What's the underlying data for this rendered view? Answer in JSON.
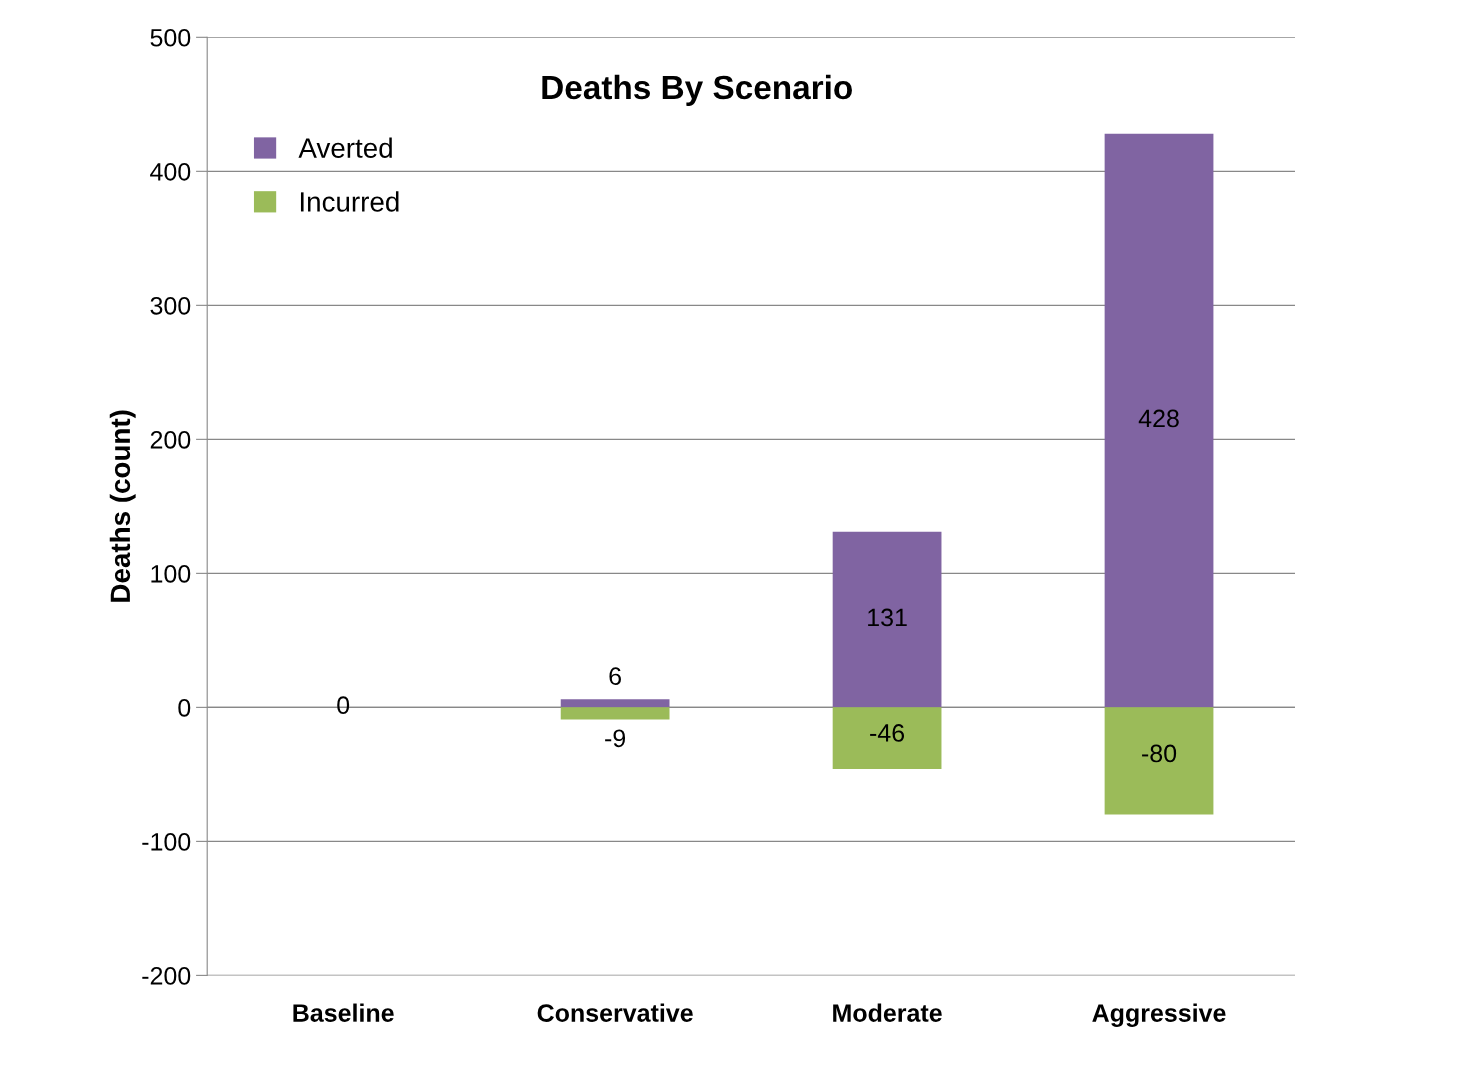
{
  "chart_data": {
    "type": "bar",
    "title": "Deaths By Scenario",
    "ylabel": "Deaths (count)",
    "categories": [
      "Baseline",
      "Conservative",
      "Moderate",
      "Aggressive"
    ],
    "stacked": true,
    "series": [
      {
        "name": "Averted",
        "color": "#8064a2",
        "values": [
          0,
          6,
          131,
          428
        ],
        "value_labels": [
          "0",
          "6",
          "131",
          "428"
        ]
      },
      {
        "name": "Incurred",
        "color": "#9bbb59",
        "values": [
          0,
          -9,
          -46,
          -80
        ],
        "value_labels": [
          null,
          "-9",
          "-46",
          "-80"
        ]
      }
    ],
    "ylim": [
      -200,
      500
    ],
    "yticks": [
      -200,
      -100,
      0,
      100,
      200,
      300,
      400,
      500
    ],
    "grid": "y",
    "legend": "top left"
  }
}
